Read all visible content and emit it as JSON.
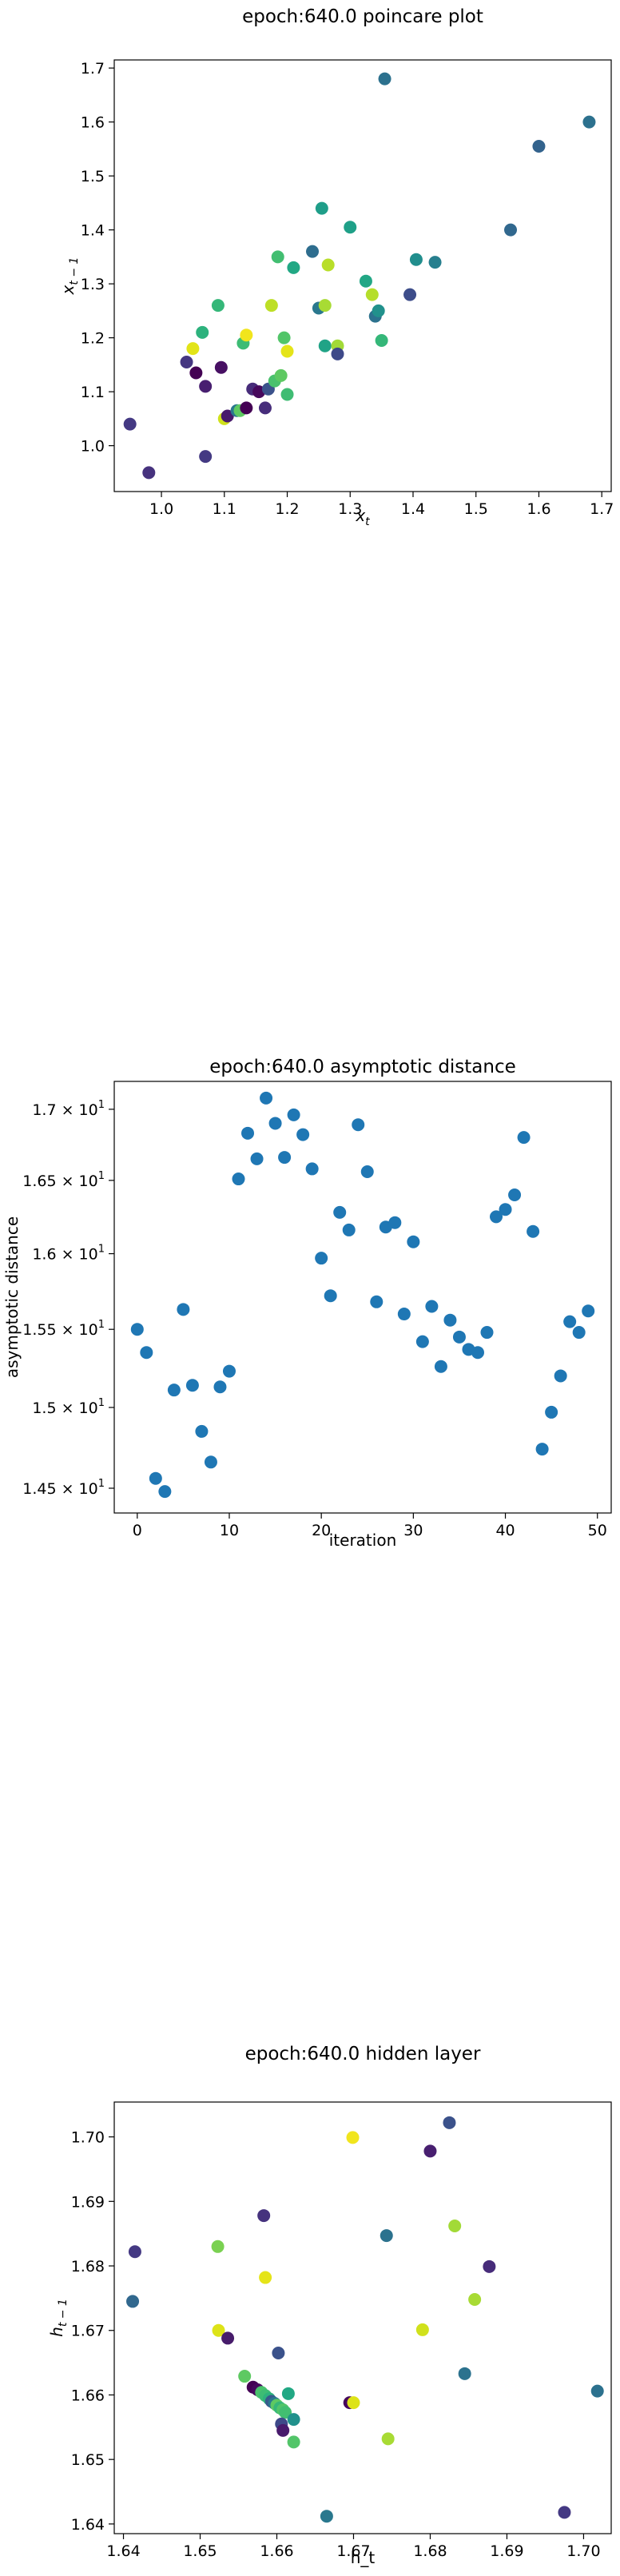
{
  "chart_data": [
    {
      "type": "scatter",
      "title": "epoch:640.0 poincare plot",
      "xlabel": "x_t",
      "ylabel": "x_{t-1}",
      "xlim": [
        0.925,
        1.715
      ],
      "ylim": [
        0.915,
        1.715
      ],
      "xticks": [
        "1.0",
        "1.1",
        "1.2",
        "1.3",
        "1.4",
        "1.5",
        "1.6",
        "1.7"
      ],
      "yticks": [
        "1.0",
        "1.1",
        "1.2",
        "1.3",
        "1.4",
        "1.5",
        "1.6",
        "1.7"
      ],
      "points": [
        {
          "x": 0.95,
          "y": 1.04,
          "color": "#443983"
        },
        {
          "x": 0.98,
          "y": 0.95,
          "color": "#46327e"
        },
        {
          "x": 1.04,
          "y": 1.155,
          "color": "#453781"
        },
        {
          "x": 1.05,
          "y": 1.18,
          "color": "#e2e418"
        },
        {
          "x": 1.055,
          "y": 1.135,
          "color": "#440154"
        },
        {
          "x": 1.065,
          "y": 1.21,
          "color": "#2db27d"
        },
        {
          "x": 1.07,
          "y": 0.98,
          "color": "#443a83"
        },
        {
          "x": 1.07,
          "y": 1.11,
          "color": "#481f70"
        },
        {
          "x": 1.09,
          "y": 1.26,
          "color": "#35b779"
        },
        {
          "x": 1.095,
          "y": 1.145,
          "color": "#471063"
        },
        {
          "x": 1.1,
          "y": 1.05,
          "color": "#d0e11c"
        },
        {
          "x": 1.105,
          "y": 1.055,
          "color": "#481a6c"
        },
        {
          "x": 1.12,
          "y": 1.065,
          "color": "#2a788e"
        },
        {
          "x": 1.125,
          "y": 1.065,
          "color": "#5ec962"
        },
        {
          "x": 1.13,
          "y": 1.19,
          "color": "#3dbc74"
        },
        {
          "x": 1.135,
          "y": 1.205,
          "color": "#f1e51d"
        },
        {
          "x": 1.135,
          "y": 1.07,
          "color": "#440154"
        },
        {
          "x": 1.145,
          "y": 1.105,
          "color": "#472c7a"
        },
        {
          "x": 1.155,
          "y": 1.1,
          "color": "#46085c"
        },
        {
          "x": 1.165,
          "y": 1.07,
          "color": "#472d7b"
        },
        {
          "x": 1.17,
          "y": 1.105,
          "color": "#3b528b"
        },
        {
          "x": 1.175,
          "y": 1.26,
          "color": "#bddf26"
        },
        {
          "x": 1.18,
          "y": 1.12,
          "color": "#4ac16d"
        },
        {
          "x": 1.185,
          "y": 1.35,
          "color": "#42be71"
        },
        {
          "x": 1.19,
          "y": 1.13,
          "color": "#5ec962"
        },
        {
          "x": 1.195,
          "y": 1.2,
          "color": "#52c569"
        },
        {
          "x": 1.2,
          "y": 1.095,
          "color": "#3fbc73"
        },
        {
          "x": 1.2,
          "y": 1.175,
          "color": "#e5e419"
        },
        {
          "x": 1.21,
          "y": 1.33,
          "color": "#22a884"
        },
        {
          "x": 1.24,
          "y": 1.36,
          "color": "#2e6d8e"
        },
        {
          "x": 1.25,
          "y": 1.255,
          "color": "#2a788e"
        },
        {
          "x": 1.255,
          "y": 1.44,
          "color": "#1f9e89"
        },
        {
          "x": 1.26,
          "y": 1.26,
          "color": "#a8db34"
        },
        {
          "x": 1.26,
          "y": 1.185,
          "color": "#20a386"
        },
        {
          "x": 1.265,
          "y": 1.335,
          "color": "#b8de29"
        },
        {
          "x": 1.28,
          "y": 1.185,
          "color": "#a2da37"
        },
        {
          "x": 1.28,
          "y": 1.17,
          "color": "#3e4989"
        },
        {
          "x": 1.3,
          "y": 1.405,
          "color": "#1fa088"
        },
        {
          "x": 1.325,
          "y": 1.305,
          "color": "#22a785"
        },
        {
          "x": 1.335,
          "y": 1.28,
          "color": "#b5de2b"
        },
        {
          "x": 1.34,
          "y": 1.24,
          "color": "#2c728e"
        },
        {
          "x": 1.345,
          "y": 1.25,
          "color": "#21918c"
        },
        {
          "x": 1.35,
          "y": 1.195,
          "color": "#35b779"
        },
        {
          "x": 1.355,
          "y": 1.68,
          "color": "#2c718e"
        },
        {
          "x": 1.395,
          "y": 1.28,
          "color": "#3d4d8a"
        },
        {
          "x": 1.405,
          "y": 1.345,
          "color": "#218e8d"
        },
        {
          "x": 1.435,
          "y": 1.34,
          "color": "#277f8e"
        },
        {
          "x": 1.555,
          "y": 1.4,
          "color": "#31688e"
        },
        {
          "x": 1.6,
          "y": 1.555,
          "color": "#33638d"
        },
        {
          "x": 1.68,
          "y": 1.6,
          "color": "#2c718e"
        }
      ]
    },
    {
      "type": "scatter",
      "title": "epoch:640.0 asymptotic distance",
      "xlabel": "iteration",
      "ylabel": "asymptotic distance",
      "yscale": "log",
      "xlim": [
        -2.5,
        51.5
      ],
      "ylim": [
        14.35,
        17.2
      ],
      "xticks": [
        "0",
        "10",
        "20",
        "30",
        "40",
        "50"
      ],
      "ytick_values": [
        14.5,
        15,
        15.5,
        16,
        16.5,
        17
      ],
      "yticks_mant": [
        "1.45",
        "1.5",
        "1.55",
        "1.6",
        "1.65",
        "1.7"
      ],
      "ytick_exp": "1",
      "color": "#1f77b4",
      "x": [
        0,
        1,
        2,
        3,
        4,
        5,
        6,
        7,
        8,
        9,
        10,
        11,
        12,
        13,
        14,
        15,
        16,
        17,
        18,
        19,
        20,
        21,
        22,
        23,
        24,
        25,
        26,
        27,
        28,
        29,
        30,
        31,
        32,
        33,
        34,
        35,
        36,
        37,
        38,
        39,
        40,
        41,
        42,
        43,
        44,
        45,
        46,
        47,
        48,
        49
      ],
      "y": [
        15.5,
        15.35,
        14.56,
        14.48,
        15.11,
        15.63,
        15.14,
        14.85,
        14.66,
        15.13,
        15.23,
        16.51,
        16.83,
        16.65,
        17.08,
        16.9,
        16.66,
        16.96,
        16.82,
        16.58,
        15.97,
        15.72,
        16.28,
        16.16,
        16.89,
        16.56,
        15.68,
        16.18,
        16.21,
        15.6,
        16.08,
        15.42,
        15.65,
        15.26,
        15.56,
        15.45,
        15.37,
        15.35,
        15.48,
        16.25,
        16.3,
        16.4,
        16.8,
        16.15,
        14.74,
        14.97,
        15.2,
        15.55,
        15.48,
        15.62
      ]
    },
    {
      "type": "scatter",
      "title": "epoch:640.0 hidden layer",
      "xlabel": "h_t",
      "ylabel": "h_{t-1}",
      "xlim": [
        1.6388,
        1.7036
      ],
      "ylim": [
        1.6385,
        1.7054
      ],
      "xticks": [
        "1.64",
        "1.65",
        "1.66",
        "1.67",
        "1.68",
        "1.69",
        "1.70"
      ],
      "yticks": [
        "1.64",
        "1.65",
        "1.66",
        "1.67",
        "1.68",
        "1.69",
        "1.70"
      ],
      "points": [
        {
          "x": 1.6415,
          "y": 1.6822,
          "color": "#443983"
        },
        {
          "x": 1.6412,
          "y": 1.6745,
          "color": "#31688e"
        },
        {
          "x": 1.6523,
          "y": 1.683,
          "color": "#7ad151"
        },
        {
          "x": 1.6524,
          "y": 1.67,
          "color": "#dde318"
        },
        {
          "x": 1.6536,
          "y": 1.6688,
          "color": "#471c6b"
        },
        {
          "x": 1.6558,
          "y": 1.6629,
          "color": "#5ec962"
        },
        {
          "x": 1.6583,
          "y": 1.6878,
          "color": "#46327e"
        },
        {
          "x": 1.6585,
          "y": 1.6782,
          "color": "#e5e419"
        },
        {
          "x": 1.6602,
          "y": 1.6665,
          "color": "#3b528b"
        },
        {
          "x": 1.6615,
          "y": 1.6602,
          "color": "#22a884"
        },
        {
          "x": 1.6569,
          "y": 1.6612,
          "color": "#440154"
        },
        {
          "x": 1.6575,
          "y": 1.6608,
          "color": "#46085c"
        },
        {
          "x": 1.658,
          "y": 1.6604,
          "color": "#4ac16d"
        },
        {
          "x": 1.6585,
          "y": 1.6599,
          "color": "#3dbc74"
        },
        {
          "x": 1.659,
          "y": 1.6594,
          "color": "#2db27d"
        },
        {
          "x": 1.6593,
          "y": 1.659,
          "color": "#38598c"
        },
        {
          "x": 1.6597,
          "y": 1.6587,
          "color": "#2a788e"
        },
        {
          "x": 1.66,
          "y": 1.6584,
          "color": "#5ec962"
        },
        {
          "x": 1.6604,
          "y": 1.658,
          "color": "#35b779"
        },
        {
          "x": 1.6608,
          "y": 1.6577,
          "color": "#52c569"
        },
        {
          "x": 1.6611,
          "y": 1.6573,
          "color": "#42be71"
        },
        {
          "x": 1.6606,
          "y": 1.6555,
          "color": "#3e4989"
        },
        {
          "x": 1.6608,
          "y": 1.6545,
          "color": "#481a6c"
        },
        {
          "x": 1.6622,
          "y": 1.6562,
          "color": "#21918c"
        },
        {
          "x": 1.6622,
          "y": 1.6527,
          "color": "#52c569"
        },
        {
          "x": 1.6665,
          "y": 1.6412,
          "color": "#2a788e"
        },
        {
          "x": 1.6695,
          "y": 1.6588,
          "color": "#46085c"
        },
        {
          "x": 1.67,
          "y": 1.6588,
          "color": "#dde318"
        },
        {
          "x": 1.6699,
          "y": 1.6999,
          "color": "#f1e51d"
        },
        {
          "x": 1.6743,
          "y": 1.6847,
          "color": "#2c728e"
        },
        {
          "x": 1.6745,
          "y": 1.6532,
          "color": "#a8db34"
        },
        {
          "x": 1.679,
          "y": 1.6701,
          "color": "#d0e11c"
        },
        {
          "x": 1.68,
          "y": 1.6978,
          "color": "#481f70"
        },
        {
          "x": 1.6825,
          "y": 1.7022,
          "color": "#3b528b"
        },
        {
          "x": 1.6832,
          "y": 1.6862,
          "color": "#a2da37"
        },
        {
          "x": 1.6845,
          "y": 1.6633,
          "color": "#2c728e"
        },
        {
          "x": 1.6858,
          "y": 1.6748,
          "color": "#a8db34"
        },
        {
          "x": 1.6877,
          "y": 1.6799,
          "color": "#472c7a"
        },
        {
          "x": 1.6975,
          "y": 1.6418,
          "color": "#443983"
        },
        {
          "x": 1.7018,
          "y": 1.6606,
          "color": "#2c718e"
        }
      ]
    }
  ]
}
